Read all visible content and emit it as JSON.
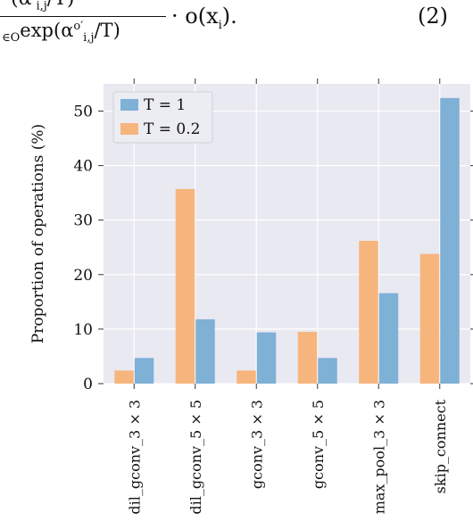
{
  "formula": {
    "numerator": "(α′",
    "numerator_sub": "i,j",
    "numerator_tail": "/T)",
    "denominator_prefix": "∈O",
    "denominator_exp": "exp(α",
    "denominator_sup": "o′",
    "denominator_sub": "i,j",
    "denominator_tail": "/T)",
    "tail": "· o(x",
    "tail_sub": "i",
    "tail_end": ").",
    "equation_number": "(2)"
  },
  "chart_data": {
    "type": "bar",
    "categories": [
      "dil_gconv_3 × 3",
      "dil_gconv_5 × 5",
      "gconv_3 × 3",
      "gconv_5 × 5",
      "max_pool_3 × 3",
      "skip_connect"
    ],
    "series": [
      {
        "name": "T = 1",
        "color": "#7fb0d6",
        "values": [
          4.7,
          11.8,
          9.4,
          4.7,
          16.6,
          52.4
        ]
      },
      {
        "name": "T = 0.2",
        "color": "#f7b57e",
        "values": [
          2.4,
          35.7,
          2.4,
          9.5,
          26.2,
          23.8
        ]
      }
    ],
    "bar_order": [
      "T = 0.2",
      "T = 1"
    ],
    "title": "",
    "xlabel": "",
    "ylabel": "Proportion of operations (%)",
    "ylim": [
      0,
      55
    ],
    "yticks": [
      0,
      10,
      20,
      30,
      40,
      50
    ],
    "grid": true,
    "legend_position": "top-left",
    "background": "#e9e9f2"
  }
}
